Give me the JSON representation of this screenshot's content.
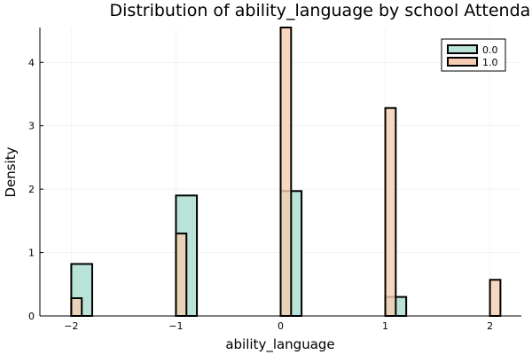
{
  "chart_data": {
    "type": "histogram",
    "title": "Distribution of ability_language by school Attendance",
    "xlabel": "ability_language",
    "ylabel": "Density",
    "xlim": [
      -2.3,
      2.3
    ],
    "ylim": [
      0,
      4.55
    ],
    "xticks": [
      -2,
      -1,
      0,
      1,
      2
    ],
    "xtick_labels": [
      "−2",
      "−1",
      "0",
      "1",
      "2"
    ],
    "yticks": [
      0,
      1,
      2,
      3,
      4
    ],
    "ytick_labels": [
      "0",
      "1",
      "2",
      "3",
      "4"
    ],
    "grid": true,
    "legend_position": "top-right",
    "series": [
      {
        "name": "0.0",
        "color": "#b9e3d8",
        "bins": [
          {
            "x0": -2.0,
            "x1": -1.8,
            "density": 0.82
          },
          {
            "x0": -1.8,
            "x1": -1.0,
            "density": 0.0
          },
          {
            "x0": -1.0,
            "x1": -0.8,
            "density": 1.9
          },
          {
            "x0": -0.8,
            "x1": 0.0,
            "density": 0.0
          },
          {
            "x0": 0.0,
            "x1": 0.2,
            "density": 1.97
          },
          {
            "x0": 0.2,
            "x1": 1.0,
            "density": 0.0
          },
          {
            "x0": 1.0,
            "x1": 1.2,
            "density": 0.3
          }
        ]
      },
      {
        "name": "1.0",
        "color": "#f6cdb2",
        "bins": [
          {
            "x0": -2.0,
            "x1": -1.9,
            "density": 0.28
          },
          {
            "x0": -1.9,
            "x1": -1.0,
            "density": 0.0
          },
          {
            "x0": -1.0,
            "x1": -0.9,
            "density": 1.3
          },
          {
            "x0": -0.9,
            "x1": 0.0,
            "density": 0.0
          },
          {
            "x0": 0.0,
            "x1": 0.1,
            "density": 4.55
          },
          {
            "x0": 0.1,
            "x1": 1.0,
            "density": 0.0
          },
          {
            "x0": 1.0,
            "x1": 1.1,
            "density": 3.28
          },
          {
            "x0": 1.1,
            "x1": 2.0,
            "density": 0.0
          },
          {
            "x0": 2.0,
            "x1": 2.1,
            "density": 0.57
          },
          {
            "x0": 2.1,
            "x1": 2.2,
            "density": 0.0
          }
        ]
      }
    ]
  }
}
